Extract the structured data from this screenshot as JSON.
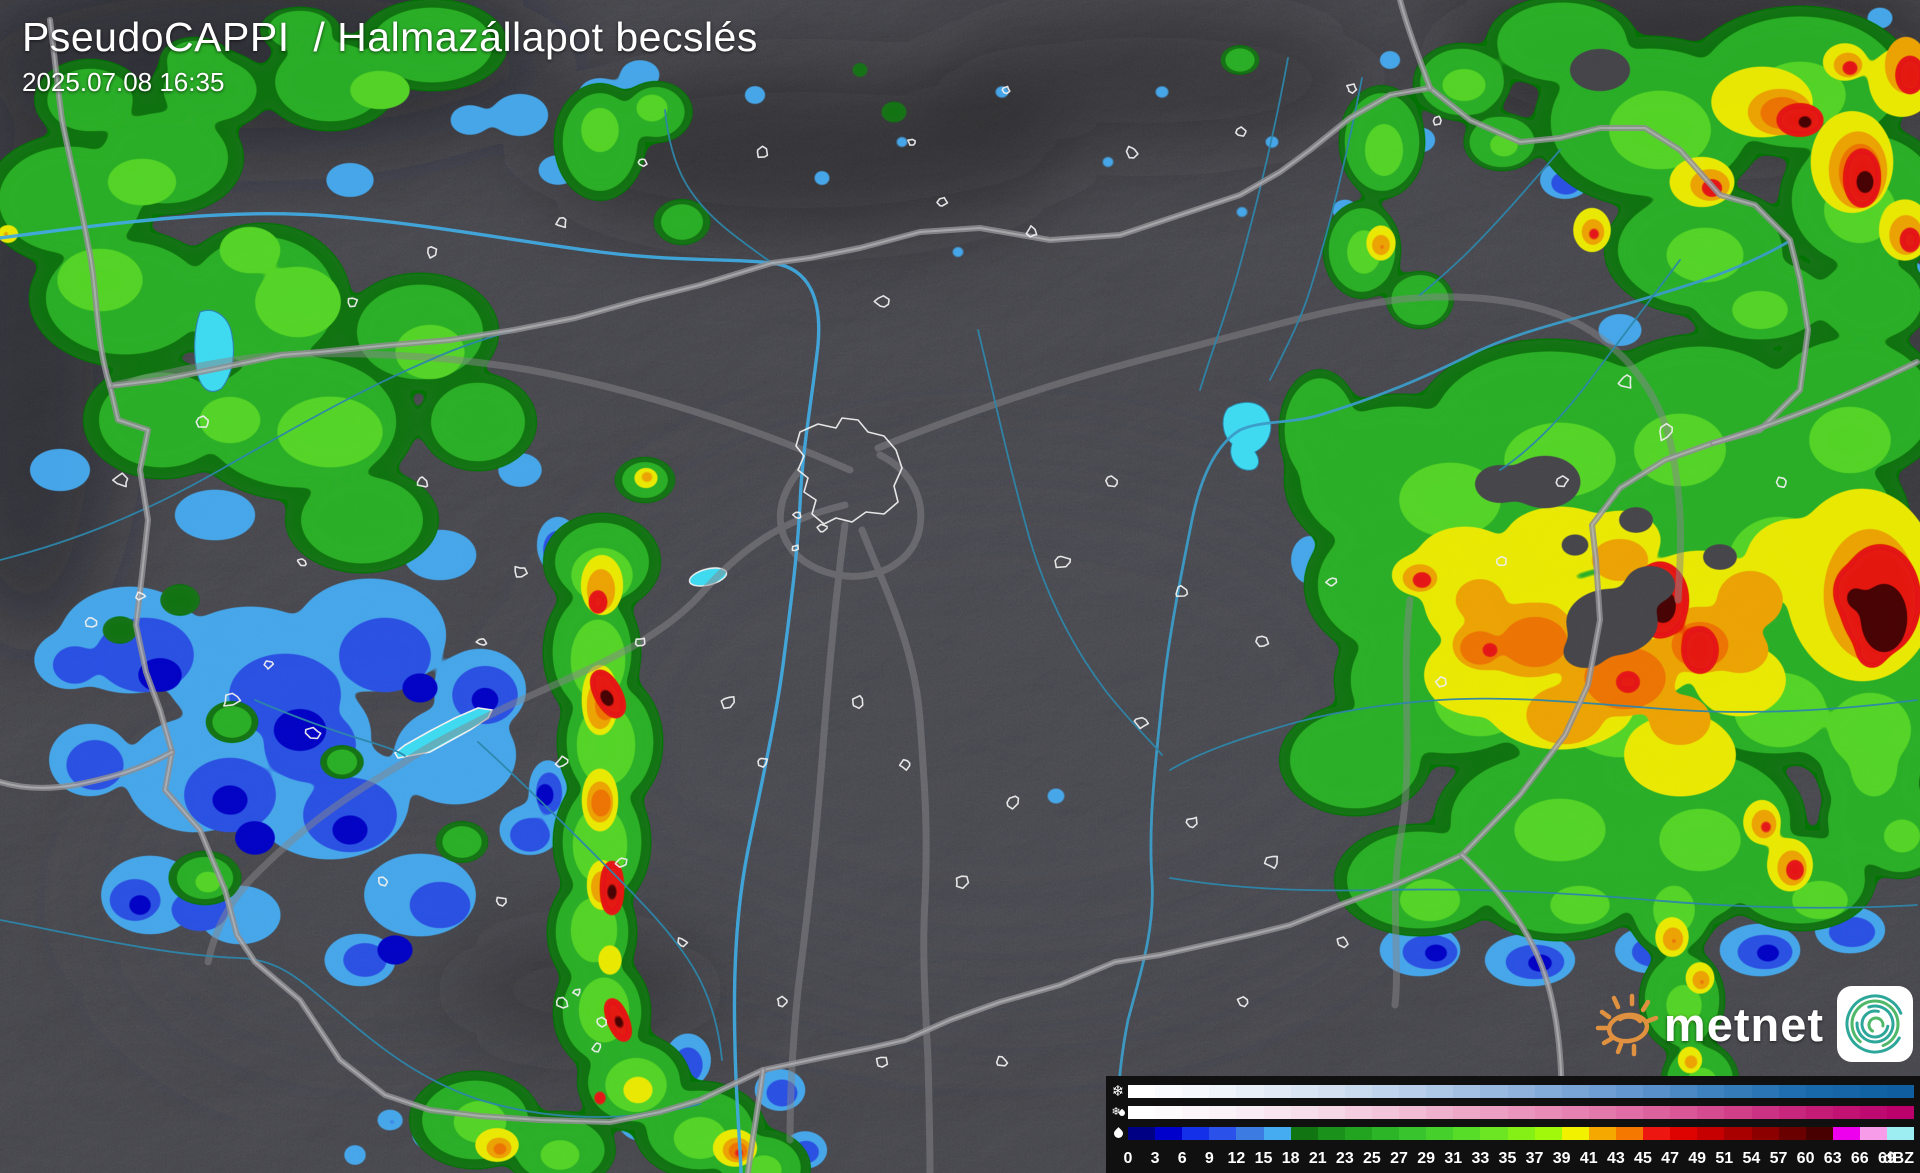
{
  "header": {
    "title": "PseudoCAPPI  / Halmazállapot becslés",
    "timestamp": "2025.07.08 16:35"
  },
  "branding": {
    "wordmark": "metnet",
    "sun_icon": "sun-doodle-icon",
    "app_icon": "cyclone-spiral-icon",
    "sun_color": "#E0913F",
    "spiral_teal": "#2EA79B",
    "spiral_green": "#4FB969"
  },
  "legend": {
    "unit": "dBZ",
    "panel_bg": "#101010",
    "ticks": [
      "0",
      "3",
      "6",
      "9",
      "12",
      "15",
      "18",
      "21",
      "23",
      "25",
      "27",
      "29",
      "31",
      "33",
      "35",
      "37",
      "39",
      "41",
      "43",
      "45",
      "47",
      "49",
      "51",
      "54",
      "57",
      "60",
      "63",
      "66",
      "69"
    ],
    "rows": [
      {
        "id": "snow",
        "icon": "snowflake-icon",
        "anchors": [
          "#FFFFFF",
          "#EDF2FA",
          "#D3E0F2",
          "#B3CBE9",
          "#8FB3DD",
          "#699BD1",
          "#3F82C0",
          "#1A6BAC",
          "#0E5EA0"
        ]
      },
      {
        "id": "mixed",
        "icon": "sleet-icon",
        "anchors": [
          "#FFFFFF",
          "#FAF0F6",
          "#F5D7E6",
          "#F0B7D1",
          "#EA95BD",
          "#E273A8",
          "#D54B90",
          "#C62079",
          "#BB006C"
        ]
      },
      {
        "id": "rain",
        "icon": "raindrop-icon",
        "cells": [
          "#000084",
          "#0000CC",
          "#1430E8",
          "#2A52EA",
          "#3C7CE2",
          "#46ACF2",
          "#117611",
          "#1A911A",
          "#22A421",
          "#2CB527",
          "#38C42C",
          "#46D02C",
          "#57DC28",
          "#6CE622",
          "#84F016",
          "#A2F80A",
          "#F2F200",
          "#F5A800",
          "#F57800",
          "#EE1610",
          "#DE0300",
          "#C60000",
          "#A80000",
          "#8C0000",
          "#6A0000",
          "#480000",
          "#EE00EE",
          "#F79CE8",
          "#9CEEF2"
        ]
      }
    ]
  },
  "map": {
    "region": "Hungary",
    "no_data_color": "#46464C",
    "border_color": "#8E8E92",
    "river_color": "#2E86AA",
    "danube_color": "#41A9DE",
    "lake_color": "#3FD9F0",
    "road_color": "#85858A",
    "city_outline_color": "#EEEEEE"
  }
}
